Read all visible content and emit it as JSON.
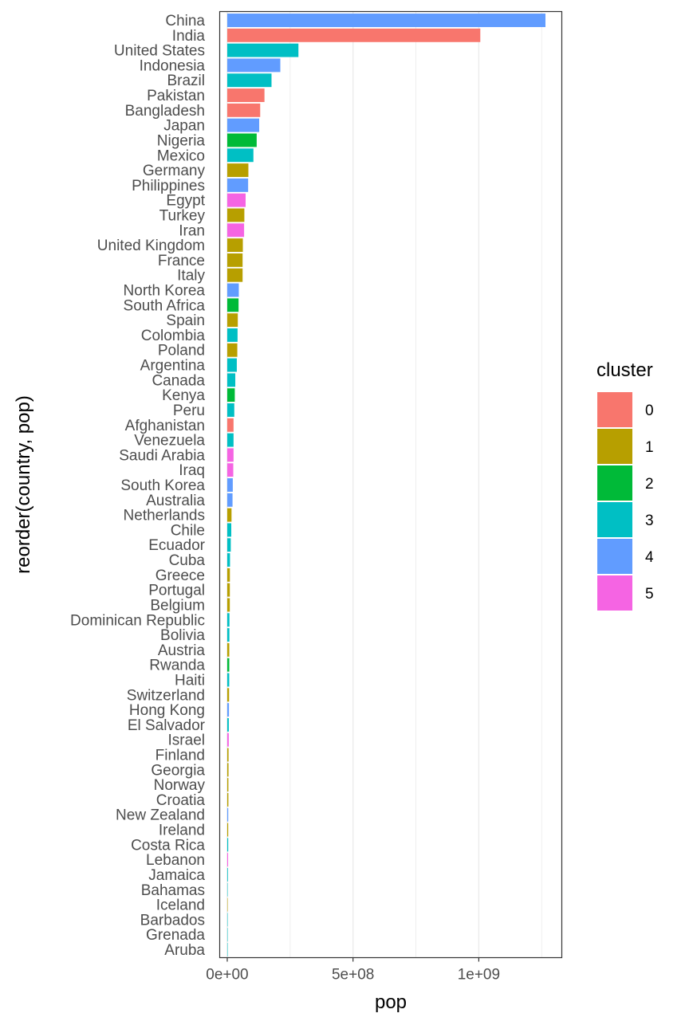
{
  "chart_data": {
    "type": "bar",
    "orientation": "horizontal",
    "xlabel": "pop",
    "ylabel": "reorder(country, pop)",
    "xlim": [
      -30000000,
      1330000000
    ],
    "x_ticks": [
      {
        "value": 0,
        "label": "0e+00"
      },
      {
        "value": 500000000,
        "label": "5e+08"
      },
      {
        "value": 1000000000,
        "label": "1e+09"
      }
    ],
    "x_minor_ticks": [
      250000000,
      750000000,
      1250000000
    ],
    "grid": true,
    "legend": {
      "title": "cluster",
      "position": "right",
      "entries": [
        {
          "label": "0",
          "color": "#F8766D"
        },
        {
          "label": "1",
          "color": "#B79F00"
        },
        {
          "label": "2",
          "color": "#00BA38"
        },
        {
          "label": "3",
          "color": "#00BFC4"
        },
        {
          "label": "4",
          "color": "#619CFF"
        },
        {
          "label": "5",
          "color": "#F564E3"
        }
      ]
    },
    "categories": [
      "China",
      "India",
      "United States",
      "Indonesia",
      "Brazil",
      "Pakistan",
      "Bangladesh",
      "Japan",
      "Nigeria",
      "Mexico",
      "Germany",
      "Philippines",
      "Egypt",
      "Turkey",
      "Iran",
      "United Kingdom",
      "France",
      "Italy",
      "North Korea",
      "South Africa",
      "Spain",
      "Colombia",
      "Poland",
      "Argentina",
      "Canada",
      "Kenya",
      "Peru",
      "Afghanistan",
      "Venezuela",
      "Saudi Arabia",
      "Iraq",
      "South Korea",
      "Australia",
      "Netherlands",
      "Chile",
      "Ecuador",
      "Cuba",
      "Greece",
      "Portugal",
      "Belgium",
      "Dominican Republic",
      "Bolivia",
      "Austria",
      "Rwanda",
      "Haiti",
      "Switzerland",
      "Hong Kong",
      "El Salvador",
      "Israel",
      "Finland",
      "Georgia",
      "Norway",
      "Croatia",
      "New Zealand",
      "Ireland",
      "Costa Rica",
      "Lebanon",
      "Jamaica",
      "Bahamas",
      "Iceland",
      "Barbados",
      "Grenada",
      "Aruba"
    ],
    "values": [
      1265000000,
      1006000000,
      283000000,
      211000000,
      176000000,
      148000000,
      131000000,
      127000000,
      117000000,
      104000000,
      84000000,
      83000000,
      73000000,
      68000000,
      67000000,
      62000000,
      61000000,
      61000000,
      46000000,
      45000000,
      42000000,
      41000000,
      40000000,
      38000000,
      32000000,
      30000000,
      28000000,
      25000000,
      25000000,
      25000000,
      24000000,
      22000000,
      21000000,
      17000000,
      16000000,
      14000000,
      11000000,
      10500000,
      10300000,
      10200000,
      8800000,
      8500000,
      8100000,
      8000000,
      7900000,
      7300000,
      6800000,
      6200000,
      6100000,
      5200000,
      5000000,
      4500000,
      4500000,
      3900000,
      3800000,
      3800000,
      3400000,
      2600000,
      300000,
      300000,
      300000,
      100000,
      100000
    ],
    "clusters": [
      4,
      0,
      3,
      4,
      3,
      0,
      0,
      4,
      2,
      3,
      1,
      4,
      5,
      1,
      5,
      1,
      1,
      1,
      4,
      2,
      1,
      3,
      1,
      3,
      3,
      2,
      3,
      0,
      3,
      5,
      5,
      4,
      4,
      1,
      3,
      3,
      3,
      1,
      1,
      1,
      3,
      3,
      1,
      2,
      3,
      1,
      4,
      3,
      5,
      1,
      1,
      1,
      1,
      4,
      1,
      3,
      5,
      3,
      3,
      1,
      3,
      3,
      3
    ]
  }
}
